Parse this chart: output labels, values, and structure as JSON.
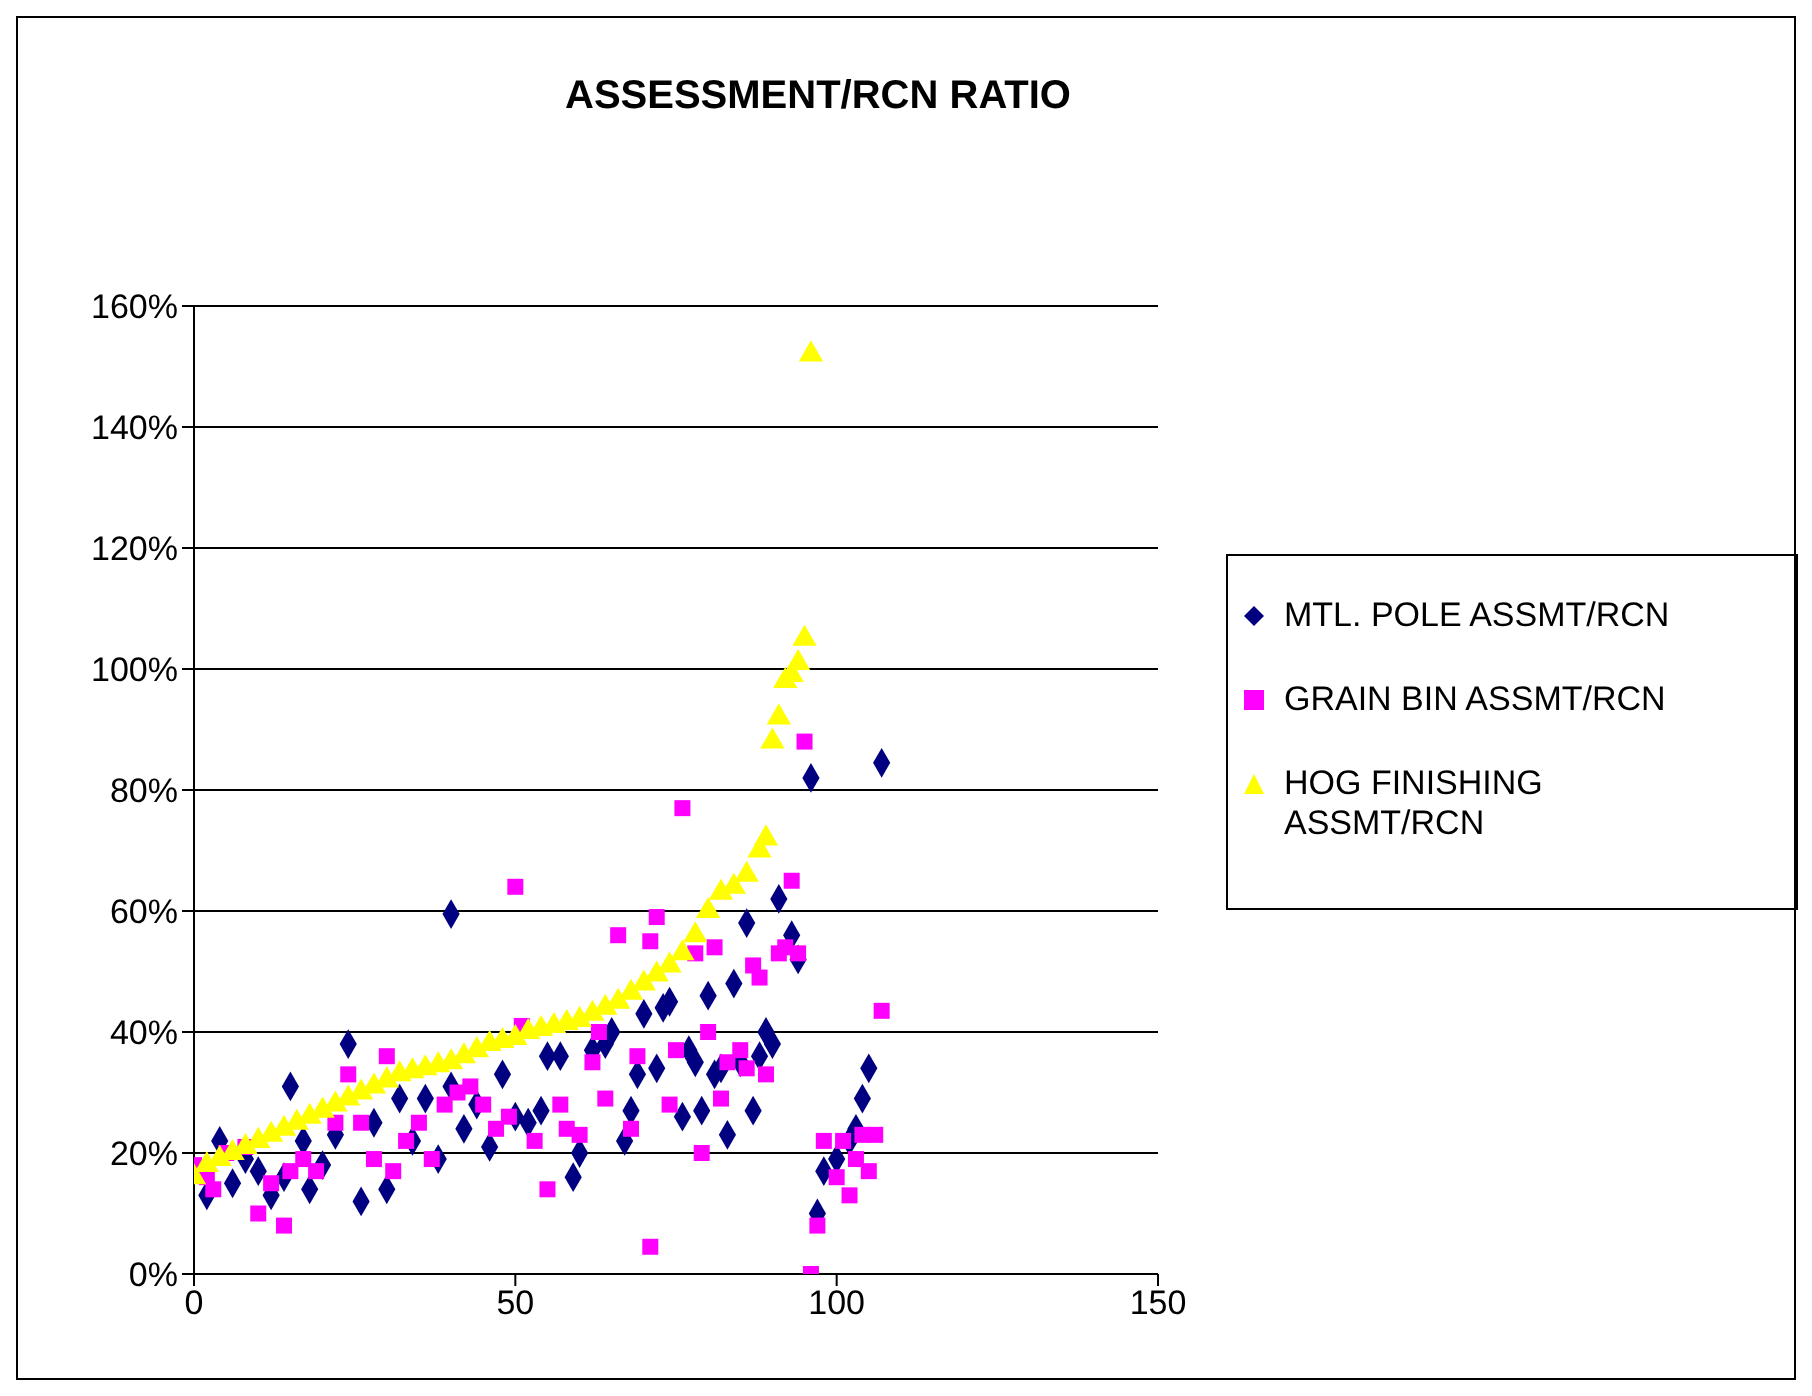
{
  "chart_data": {
    "type": "scatter",
    "title": "ASSESSMENT/RCN RATIO",
    "xlim": [
      0,
      150
    ],
    "xticks": [
      0,
      50,
      100,
      150
    ],
    "ylim": [
      0,
      160
    ],
    "yticks": [
      {
        "value": 0,
        "label": "0%"
      },
      {
        "value": 20,
        "label": "20%"
      },
      {
        "value": 40,
        "label": "40%"
      },
      {
        "value": 60,
        "label": "60%"
      },
      {
        "value": 80,
        "label": "80%"
      },
      {
        "value": 100,
        "label": "100%"
      },
      {
        "value": 120,
        "label": "120%"
      },
      {
        "value": 140,
        "label": "140%"
      },
      {
        "value": 160,
        "label": "160%"
      }
    ],
    "grid": "y",
    "legend": "right",
    "series": [
      {
        "name": "MTL. POLE ASSMT/RCN",
        "color": "#000080",
        "marker": "diamond",
        "x": [
          2,
          4,
          6,
          8,
          10,
          12,
          14,
          15,
          17,
          18,
          20,
          22,
          24,
          26,
          28,
          30,
          32,
          34,
          36,
          38,
          40,
          40,
          42,
          44,
          46,
          48,
          50,
          52,
          54,
          55,
          57,
          59,
          60,
          62,
          64,
          65,
          67,
          68,
          69,
          70,
          72,
          73,
          74,
          76,
          77,
          78,
          79,
          80,
          81,
          82,
          83,
          84,
          85,
          86,
          87,
          88,
          89,
          90,
          91,
          93,
          94,
          96,
          97,
          98,
          100,
          102,
          103,
          104,
          105,
          107
        ],
        "values": [
          13,
          22,
          15,
          19,
          17,
          13,
          16,
          31,
          22,
          14,
          18,
          23,
          38,
          12,
          25,
          14,
          29,
          22,
          29,
          19,
          59.5,
          31,
          24,
          28,
          21,
          33,
          26,
          25,
          27,
          36,
          36,
          16,
          20,
          37,
          38,
          40,
          22,
          27,
          33,
          43,
          34,
          44,
          45,
          26,
          37,
          35,
          27,
          46,
          33,
          34,
          23,
          48,
          35,
          58,
          27,
          36,
          40,
          38,
          62,
          56,
          52,
          82,
          10,
          17,
          19,
          22,
          24,
          29,
          34,
          84.5
        ]
      },
      {
        "name": "GRAIN BIN ASSMT/RCN",
        "color": "#ff00ff",
        "marker": "square",
        "x": [
          0,
          2,
          3,
          5,
          8,
          10,
          12,
          14,
          15,
          17,
          19,
          22,
          24,
          26,
          28,
          30,
          31,
          33,
          35,
          37,
          39,
          41,
          43,
          45,
          47,
          49,
          50,
          51,
          53,
          55,
          57,
          58,
          60,
          62,
          63,
          64,
          66,
          68,
          69,
          71,
          71,
          72,
          74,
          75,
          76,
          78,
          79,
          80,
          81,
          82,
          83,
          85,
          86,
          87,
          88,
          89,
          91,
          92,
          93,
          94,
          95,
          96,
          97,
          98,
          100,
          101,
          102,
          103,
          104,
          105,
          106,
          107
        ],
        "values": [
          18,
          16,
          14,
          20,
          21,
          10,
          15,
          8,
          17,
          19,
          17,
          25,
          33,
          25,
          19,
          36,
          17,
          22,
          25,
          19,
          28,
          30,
          31,
          28,
          24,
          26,
          64,
          41,
          22,
          14,
          28,
          24,
          23,
          35,
          40,
          29,
          56,
          24,
          36,
          4.5,
          55,
          59,
          28,
          37,
          77,
          53,
          20,
          40,
          54,
          29,
          35,
          37,
          34,
          51,
          49,
          33,
          53,
          54,
          65,
          53,
          88,
          0,
          8,
          22,
          16,
          22,
          13,
          19,
          23,
          17,
          23,
          43.5
        ]
      },
      {
        "name": "HOG FINISHING ASSMT/RCN",
        "color": "#ffff00",
        "marker": "triangle",
        "x": [
          0,
          2,
          4,
          6,
          8,
          10,
          12,
          14,
          16,
          18,
          20,
          22,
          24,
          26,
          28,
          30,
          32,
          34,
          36,
          38,
          40,
          42,
          44,
          46,
          48,
          50,
          52,
          54,
          56,
          58,
          60,
          62,
          64,
          66,
          68,
          70,
          72,
          74,
          76,
          78,
          80,
          82,
          84,
          86,
          88,
          89,
          90,
          91,
          92,
          93,
          94,
          95,
          96
        ],
        "values": [
          16,
          18,
          19,
          20,
          21,
          22,
          23,
          24,
          25,
          26,
          27,
          28,
          29,
          30,
          31,
          32,
          33,
          33.5,
          34,
          34.5,
          35,
          36,
          37,
          38,
          38.5,
          39,
          40,
          40.5,
          41,
          41.5,
          42,
          43,
          44,
          45,
          46.5,
          48,
          49.5,
          51,
          53,
          56,
          60,
          63,
          64,
          66,
          70,
          72,
          88,
          92,
          98,
          99,
          101,
          105,
          152
        ]
      }
    ]
  }
}
